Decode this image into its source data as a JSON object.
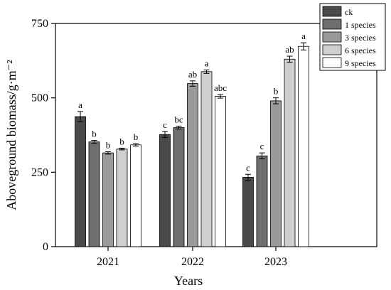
{
  "chart_data": {
    "type": "bar",
    "xlabel": "Years",
    "ylabel": "Aboveground biomass/g·m⁻²",
    "ylim": [
      0,
      750
    ],
    "yticks": [
      0,
      250,
      500,
      750
    ],
    "categories": [
      "2021",
      "2022",
      "2023"
    ],
    "legend_position": "top-right",
    "grid": false,
    "series": [
      {
        "name": "ck",
        "color": "#4a4a4a",
        "values": [
          437,
          377,
          233
        ],
        "errors": [
          17,
          10,
          10
        ],
        "letters": [
          "a",
          "c",
          "c"
        ]
      },
      {
        "name": "1 species",
        "color": "#6e6e6e",
        "values": [
          352,
          400,
          305
        ],
        "errors": [
          5,
          5,
          10
        ],
        "letters": [
          "b",
          "bc",
          "c"
        ]
      },
      {
        "name": "3 species",
        "color": "#9a9a9a",
        "values": [
          315,
          548,
          490
        ],
        "errors": [
          4,
          9,
          10
        ],
        "letters": [
          "b",
          "ab",
          "b"
        ]
      },
      {
        "name": "6 species",
        "color": "#cfcfcf",
        "values": [
          328,
          588,
          630
        ],
        "errors": [
          3,
          6,
          10
        ],
        "letters": [
          "b",
          "a",
          "ab"
        ]
      },
      {
        "name": "9 species",
        "color": "#ffffff",
        "values": [
          342,
          505,
          673
        ],
        "errors": [
          4,
          6,
          12
        ],
        "letters": [
          "b",
          "abc",
          "a"
        ]
      }
    ]
  }
}
